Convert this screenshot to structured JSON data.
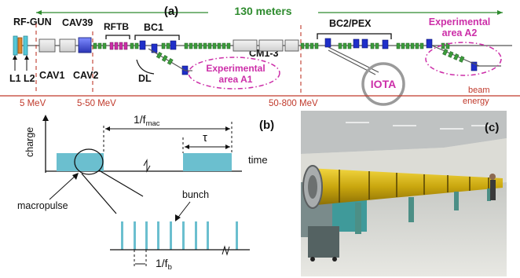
{
  "panel_a": {
    "panel_label": "(a)",
    "length_label": "130 meters",
    "labels": {
      "rf_gun": "RF-GUN",
      "cav39": "CAV39",
      "rftb": "RFTB",
      "bc1": "BC1",
      "cm13": "CM1-3",
      "bc2pex": "BC2/PEX",
      "l1": "L1",
      "l2": "L2",
      "cav1": "CAV1",
      "cav2": "CAV2",
      "dl": "DL",
      "exp_a1_line1": "Experimental",
      "exp_a1_line2": "area A1",
      "exp_a2_line1": "Experimental",
      "exp_a2_line2": "area A2",
      "iota": "IOTA"
    },
    "energy": {
      "e1": "5 MeV",
      "e2": "5-50 MeV",
      "e3": "50-800 MeV",
      "beam_line1": "beam",
      "beam_line2": "energy"
    },
    "colors": {
      "green": "#2e8b2e",
      "magenta": "#cc2ea8",
      "red": "#c0392b",
      "blue": "#1f2fc9",
      "cyan": "#55c8d8"
    }
  },
  "panel_b": {
    "panel_label": "(b)",
    "y_axis": "charge",
    "x_axis": "time",
    "period_prefix": "1/f",
    "period_sub": "mac",
    "tau": "τ",
    "macropulse": "macropulse",
    "bunch": "bunch",
    "bunch_period_prefix": "1/f",
    "bunch_period_sub": "b"
  },
  "panel_c": {
    "panel_label": "(c)",
    "photo_icon": "accelerator-photo"
  }
}
